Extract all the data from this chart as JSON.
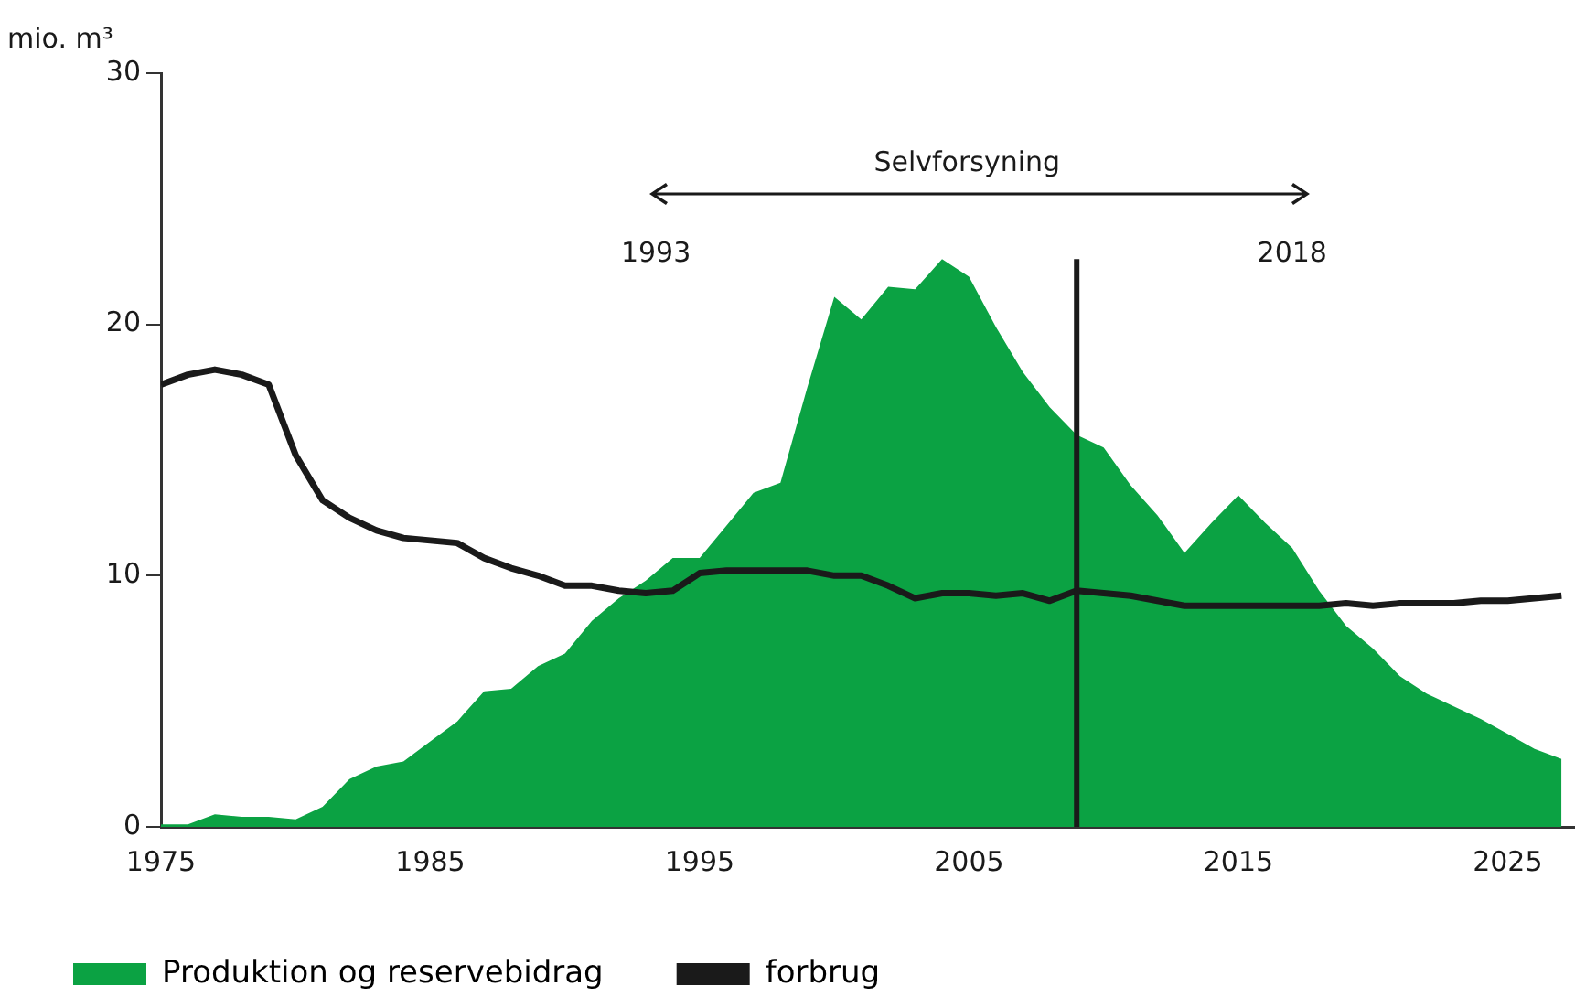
{
  "chart_data": {
    "type": "area",
    "ylabel": "mio. m³",
    "x": [
      1975,
      1976,
      1977,
      1978,
      1979,
      1980,
      1981,
      1982,
      1983,
      1984,
      1985,
      1986,
      1987,
      1988,
      1989,
      1990,
      1991,
      1992,
      1993,
      1994,
      1995,
      1996,
      1997,
      1998,
      1999,
      2000,
      2001,
      2002,
      2003,
      2004,
      2005,
      2006,
      2007,
      2008,
      2009,
      2010,
      2011,
      2012,
      2013,
      2014,
      2015,
      2016,
      2017,
      2018,
      2019,
      2020,
      2021,
      2022,
      2023,
      2024,
      2025,
      2026,
      2027
    ],
    "series": [
      {
        "name": "Produktion og reservebidrag",
        "color": "#0ba243",
        "values": [
          0.1,
          0.1,
          0.5,
          0.4,
          0.4,
          0.3,
          0.8,
          1.9,
          2.4,
          2.6,
          3.4,
          4.2,
          5.4,
          5.5,
          6.4,
          6.9,
          8.2,
          9.1,
          9.8,
          10.7,
          10.7,
          12.0,
          13.3,
          13.7,
          17.5,
          21.1,
          20.2,
          21.5,
          21.4,
          22.6,
          21.9,
          19.9,
          18.1,
          16.7,
          15.6,
          15.1,
          13.6,
          12.4,
          10.9,
          12.1,
          13.2,
          12.1,
          11.1,
          9.4,
          8.0,
          7.1,
          6.0,
          5.3,
          4.8,
          4.3,
          3.7,
          3.1,
          2.7
        ]
      },
      {
        "name": "forbrug",
        "type": "line",
        "color": "#1a1a1a",
        "values": [
          17.6,
          18.0,
          18.2,
          18.0,
          17.6,
          14.8,
          13.0,
          12.3,
          11.8,
          11.5,
          11.4,
          11.3,
          10.7,
          10.3,
          10.0,
          9.6,
          9.6,
          9.4,
          9.3,
          9.4,
          10.1,
          10.2,
          10.2,
          10.2,
          10.2,
          10.0,
          10.0,
          9.6,
          9.1,
          9.3,
          9.3,
          9.2,
          9.3,
          9.0,
          9.4,
          9.3,
          9.2,
          9.0,
          8.8,
          8.8,
          8.8,
          8.8,
          8.8,
          8.8,
          8.9,
          8.8,
          8.9,
          8.9,
          8.9,
          9.0,
          9.0,
          9.1,
          9.2
        ]
      }
    ],
    "xlim": [
      1975,
      2027.5
    ],
    "xticks": [
      1975,
      1985,
      1995,
      2005,
      2015,
      2025
    ],
    "ylim": [
      0,
      30
    ],
    "yticks": [
      0,
      10,
      20,
      30
    ],
    "grid": false,
    "legend": "bottom",
    "marker": "none",
    "line_style": "solid",
    "ref_lines": [
      {
        "axis": "x",
        "value": 2009,
        "color": "#1a1a1a"
      }
    ],
    "annotations": [
      "Selvforsyning",
      "1993",
      "2018"
    ]
  }
}
